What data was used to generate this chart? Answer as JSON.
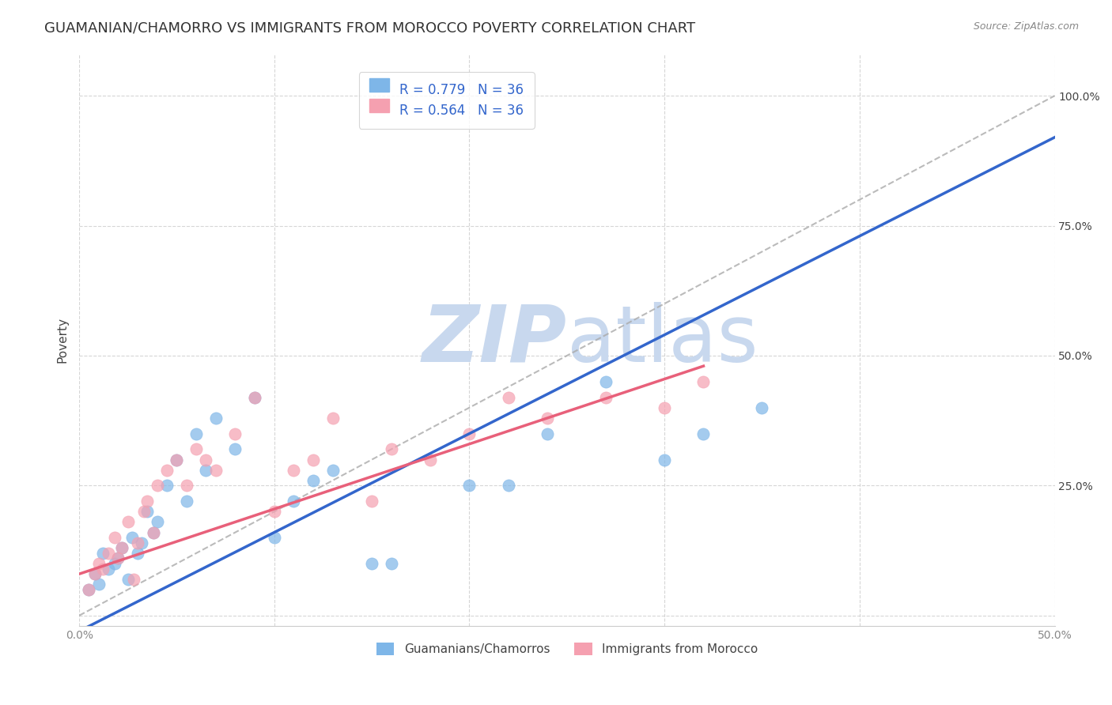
{
  "title": "GUAMANIAN/CHAMORRO VS IMMIGRANTS FROM MOROCCO POVERTY CORRELATION CHART",
  "source": "Source: ZipAtlas.com",
  "xlabel": "",
  "ylabel": "Poverty",
  "xlim": [
    0.0,
    0.5
  ],
  "ylim": [
    -0.02,
    1.08
  ],
  "xticks": [
    0.0,
    0.1,
    0.2,
    0.3,
    0.4,
    0.5
  ],
  "xticklabels": [
    "0.0%",
    "",
    "",
    "",
    "",
    "50.0%"
  ],
  "yticks": [
    0.0,
    0.25,
    0.5,
    0.75,
    1.0
  ],
  "yticklabels": [
    "",
    "25.0%",
    "50.0%",
    "75.0%",
    "100.0%"
  ],
  "blue_color": "#7EB6E8",
  "pink_color": "#F5A0B0",
  "blue_line_color": "#3366CC",
  "pink_line_color": "#E8607A",
  "watermark_color": "#C8D8EE",
  "legend_R1": "R = 0.779",
  "legend_N1": "N = 36",
  "legend_R2": "R = 0.564",
  "legend_N2": "N = 36",
  "R_blue": 0.779,
  "R_pink": 0.564,
  "blue_scatter_x": [
    0.005,
    0.008,
    0.01,
    0.012,
    0.015,
    0.018,
    0.02,
    0.022,
    0.025,
    0.027,
    0.03,
    0.032,
    0.035,
    0.038,
    0.04,
    0.045,
    0.05,
    0.055,
    0.06,
    0.065,
    0.07,
    0.08,
    0.09,
    0.1,
    0.11,
    0.12,
    0.13,
    0.15,
    0.16,
    0.2,
    0.22,
    0.24,
    0.27,
    0.3,
    0.32,
    0.35
  ],
  "blue_scatter_y": [
    0.05,
    0.08,
    0.06,
    0.12,
    0.09,
    0.1,
    0.11,
    0.13,
    0.07,
    0.15,
    0.12,
    0.14,
    0.2,
    0.16,
    0.18,
    0.25,
    0.3,
    0.22,
    0.35,
    0.28,
    0.38,
    0.32,
    0.42,
    0.15,
    0.22,
    0.26,
    0.28,
    0.1,
    0.1,
    0.25,
    0.25,
    0.35,
    0.45,
    0.3,
    0.35,
    0.4
  ],
  "pink_scatter_x": [
    0.005,
    0.008,
    0.01,
    0.012,
    0.015,
    0.018,
    0.02,
    0.022,
    0.025,
    0.028,
    0.03,
    0.033,
    0.035,
    0.038,
    0.04,
    0.045,
    0.05,
    0.055,
    0.06,
    0.065,
    0.07,
    0.08,
    0.09,
    0.1,
    0.11,
    0.12,
    0.13,
    0.15,
    0.16,
    0.18,
    0.2,
    0.22,
    0.24,
    0.27,
    0.3,
    0.32
  ],
  "pink_scatter_y": [
    0.05,
    0.08,
    0.1,
    0.09,
    0.12,
    0.15,
    0.11,
    0.13,
    0.18,
    0.07,
    0.14,
    0.2,
    0.22,
    0.16,
    0.25,
    0.28,
    0.3,
    0.25,
    0.32,
    0.3,
    0.28,
    0.35,
    0.42,
    0.2,
    0.28,
    0.3,
    0.38,
    0.22,
    0.32,
    0.3,
    0.35,
    0.42,
    0.38,
    0.42,
    0.4,
    0.45
  ],
  "blue_line_x": [
    0.0,
    0.5
  ],
  "blue_line_y": [
    -0.03,
    0.92
  ],
  "pink_line_x": [
    0.0,
    0.32
  ],
  "pink_line_y": [
    0.08,
    0.48
  ],
  "dashed_line_x": [
    0.0,
    0.5
  ],
  "dashed_line_y": [
    0.0,
    1.0
  ],
  "grid_color": "#CCCCCC",
  "legend_label_blue": "Guamanians/Chamorros",
  "legend_label_pink": "Immigrants from Morocco",
  "background_color": "#FFFFFF",
  "title_fontsize": 13,
  "axis_label_fontsize": 11,
  "tick_fontsize": 10,
  "legend_fontsize": 12,
  "watermark_zip": "ZIP",
  "watermark_atlas": "atlas",
  "scatter_size": 120
}
